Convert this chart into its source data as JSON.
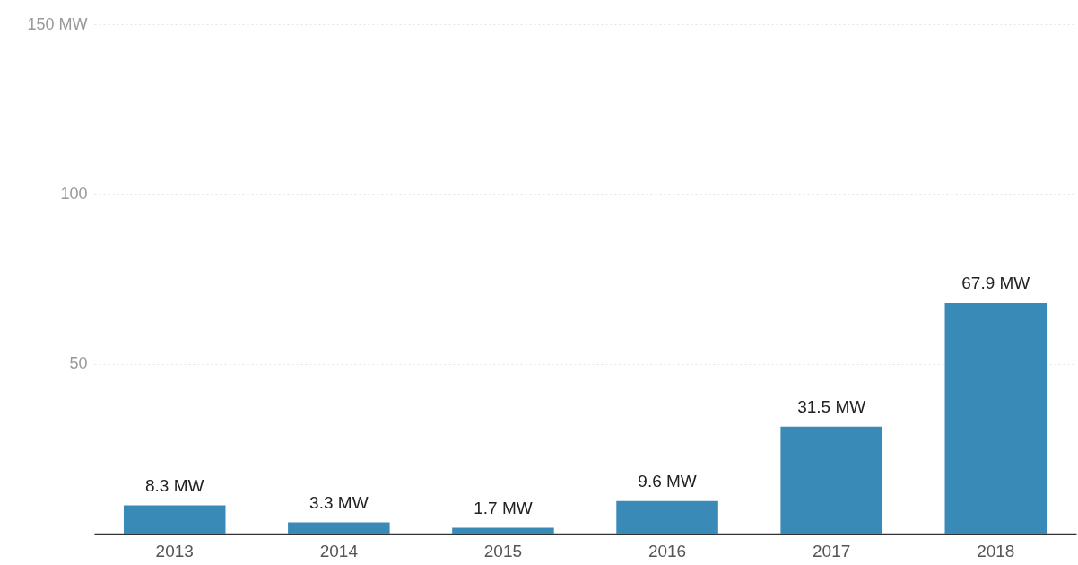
{
  "chart_data": {
    "type": "bar",
    "categories": [
      "2013",
      "2014",
      "2015",
      "2016",
      "2017",
      "2018"
    ],
    "values": [
      8.3,
      3.3,
      1.7,
      9.6,
      31.5,
      67.9
    ],
    "value_labels": [
      "8.3 MW",
      "3.3 MW",
      "1.7 MW",
      "9.6 MW",
      "31.5 MW",
      "67.9 MW"
    ],
    "color": "#3a8ab8",
    "ylim": [
      0,
      150
    ],
    "yticks": [
      {
        "value": 50,
        "label": "50"
      },
      {
        "value": 100,
        "label": "100"
      },
      {
        "value": 150,
        "label": "150 MW"
      }
    ],
    "grid": "y"
  }
}
